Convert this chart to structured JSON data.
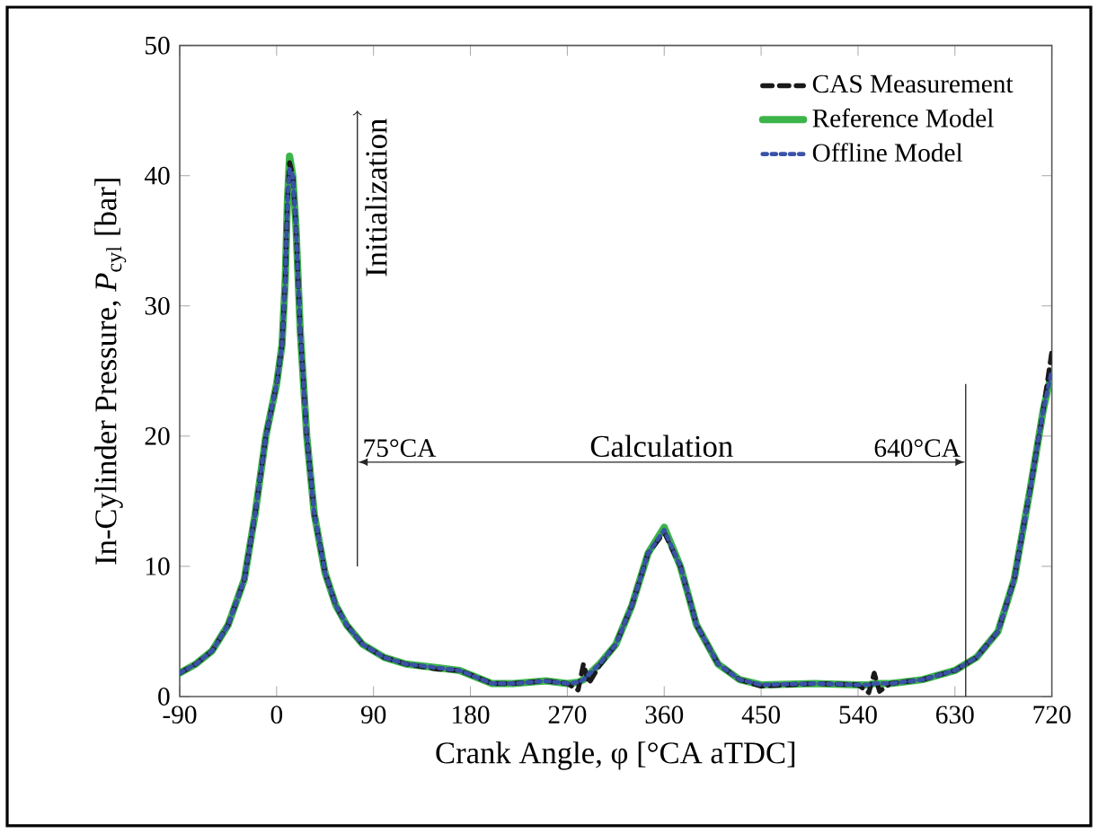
{
  "chart_data": {
    "type": "line",
    "xlabel": "Crank Angle, φ [°CA aTDC]",
    "ylabel": "In-Cylinder Pressure, *P*$_{cyl}$ [bar]",
    "x": [
      -90,
      -75,
      -60,
      -45,
      -30,
      -20,
      -10,
      0,
      5,
      8,
      10,
      12,
      15,
      18,
      22,
      28,
      35,
      45,
      55,
      65,
      80,
      100,
      120,
      150,
      170,
      185,
      200,
      220,
      250,
      270,
      280,
      285,
      290,
      300,
      315,
      330,
      345,
      360,
      375,
      390,
      410,
      430,
      450,
      500,
      540,
      550,
      555,
      560,
      570,
      600,
      630,
      650,
      670,
      685,
      700,
      712,
      720
    ],
    "series": [
      {
        "name": "CAS Measurement",
        "color": "#1a1a1a",
        "line_style": "dashed",
        "values": [
          1.8,
          2.5,
          3.5,
          5.5,
          9,
          14,
          20,
          24,
          27,
          32,
          38,
          41,
          40,
          36,
          28,
          20,
          14,
          9.5,
          7,
          5.5,
          4,
          3,
          2.5,
          2.1,
          2,
          1.5,
          1,
          1,
          1.2,
          1,
          0.5,
          2.5,
          1.0,
          2.4,
          4,
          7,
          11,
          12.6,
          10,
          5.5,
          2.5,
          1.3,
          0.8,
          1,
          0.9,
          0.3,
          1.8,
          0.4,
          1,
          1.3,
          2,
          3,
          5,
          9,
          16,
          22,
          26.5
        ]
      },
      {
        "name": "Reference Model",
        "color": "#3cb44a",
        "line_style": "solid",
        "values": [
          1.8,
          2.5,
          3.5,
          5.5,
          9,
          14,
          20,
          24,
          27,
          32,
          38,
          41.5,
          40,
          36,
          28,
          20,
          14,
          9.5,
          7,
          5.5,
          4,
          3,
          2.5,
          2.2,
          2,
          1.5,
          1,
          1,
          1.2,
          1,
          1.1,
          1.3,
          1.7,
          2.5,
          4,
          7,
          11,
          13,
          10,
          5.5,
          2.5,
          1.3,
          0.9,
          1,
          0.9,
          0.9,
          1,
          1,
          1,
          1.3,
          2,
          3,
          5,
          9,
          16,
          22,
          25
        ]
      },
      {
        "name": "Offline Model",
        "color": "#3a52a8",
        "line_style": "dotted",
        "values": [
          1.8,
          2.5,
          3.5,
          5.5,
          9,
          14,
          20,
          24,
          27,
          32,
          38,
          40.5,
          40,
          36,
          28,
          20,
          14,
          9.5,
          7,
          5.5,
          4,
          3,
          2.5,
          2.2,
          2,
          1.5,
          1,
          1,
          1.2,
          1,
          1.1,
          1.3,
          1.7,
          2.5,
          4,
          7,
          11,
          12.8,
          10,
          5.5,
          2.5,
          1.3,
          0.9,
          1,
          0.9,
          0.9,
          1,
          1,
          1,
          1.3,
          2,
          3,
          5,
          9,
          16,
          22,
          25
        ]
      }
    ],
    "xlim": [
      -90,
      720
    ],
    "xticks": [
      -90,
      0,
      90,
      180,
      270,
      360,
      450,
      540,
      630,
      720
    ],
    "ylim": [
      0,
      50
    ],
    "yticks": [
      0,
      10,
      20,
      30,
      40,
      50
    ],
    "grid": false,
    "legend": "top right",
    "ref_lines": [
      {
        "axis": "x",
        "value": 75,
        "label": "75°CA"
      },
      {
        "axis": "x",
        "value": 640,
        "label": "640°CA"
      }
    ],
    "annotations": [
      "Initialization",
      "Calculation"
    ]
  }
}
